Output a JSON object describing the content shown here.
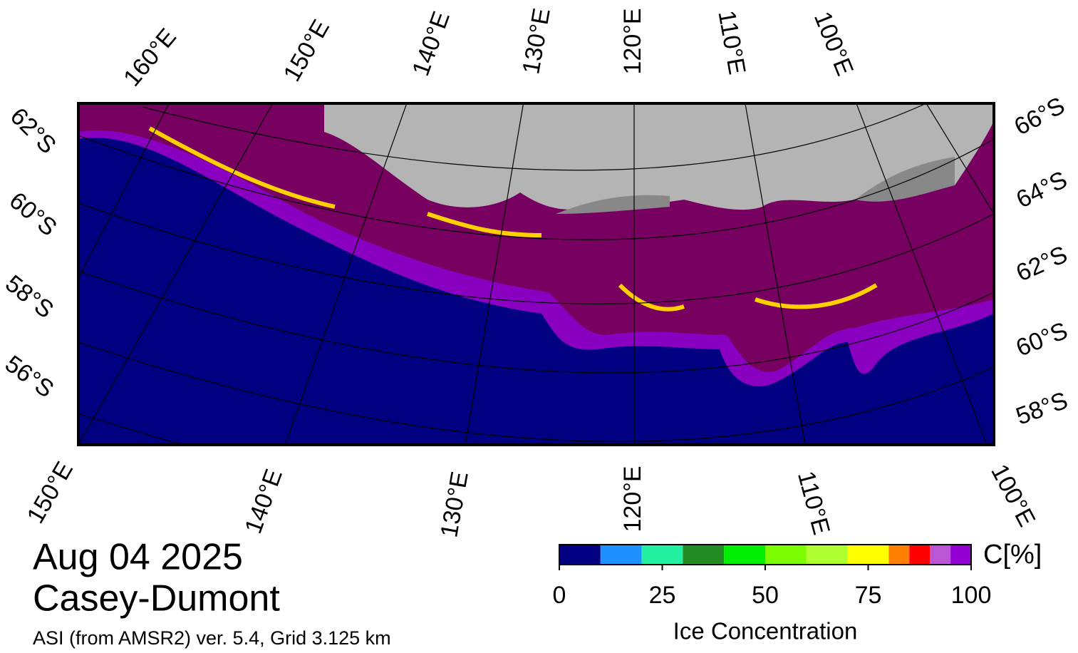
{
  "title": "Aug 04 2025",
  "region": "Casey-Dumont",
  "subtitle": "ASI (from AMSR2) ver. 5.4,  Grid 3.125 km",
  "top_lon_labels": [
    "160°E",
    "150°E",
    "140°E",
    "130°E",
    "120°E",
    "110°E",
    "100°E"
  ],
  "bottom_lon_labels": [
    "150°E",
    "140°E",
    "130°E",
    "120°E",
    "110°E",
    "100°E"
  ],
  "left_lat_labels": [
    "62°S",
    "60°S",
    "58°S",
    "56°S"
  ],
  "right_lat_labels": [
    "66°S",
    "64°S",
    "62°S",
    "60°S",
    "58°S"
  ],
  "colorbar": {
    "unit_label": "C[%]",
    "label": "Ice Concentration",
    "lim": [
      0,
      100
    ],
    "ticks": [
      0,
      25,
      50,
      75,
      100
    ],
    "bounds": [
      0,
      10,
      20,
      30,
      40,
      50,
      60,
      70,
      80,
      85,
      90,
      95,
      100
    ],
    "colors": [
      "#000080",
      "#1e90ff",
      "#20f0a0",
      "#228b22",
      "#00ee00",
      "#7cfc00",
      "#adff2f",
      "#ffff00",
      "#ff7f00",
      "#ff0000",
      "#ba55d3",
      "#9400d3"
    ]
  }
}
